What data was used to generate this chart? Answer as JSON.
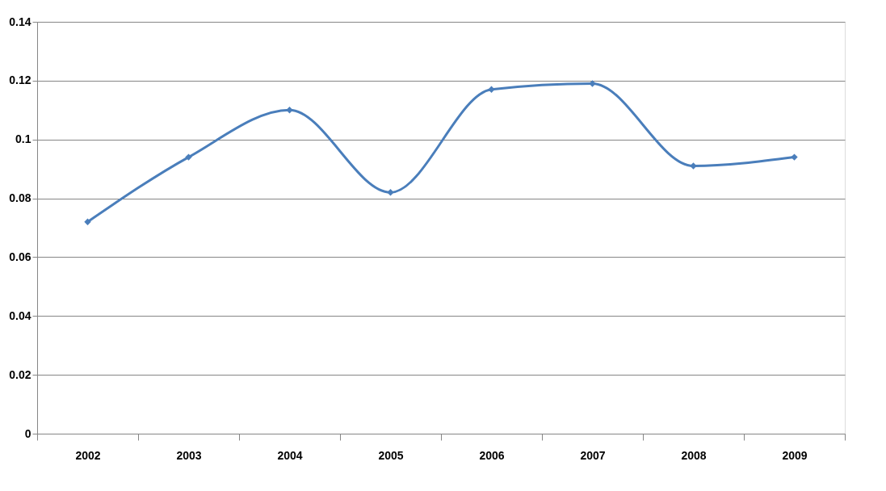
{
  "chart_data": {
    "type": "line",
    "categories": [
      "2002",
      "2003",
      "2004",
      "2005",
      "2006",
      "2007",
      "2008",
      "2009"
    ],
    "series": [
      {
        "color": "#4a7ebb",
        "values": [
          0.072,
          0.094,
          0.11,
          0.082,
          0.117,
          0.119,
          0.091,
          0.094
        ]
      }
    ],
    "ylim": [
      0,
      0.14
    ],
    "yticks": [
      0,
      0.02,
      0.04,
      0.06,
      0.08,
      0.1,
      0.12,
      0.14
    ],
    "grid": "y",
    "marker": "diamond"
  }
}
